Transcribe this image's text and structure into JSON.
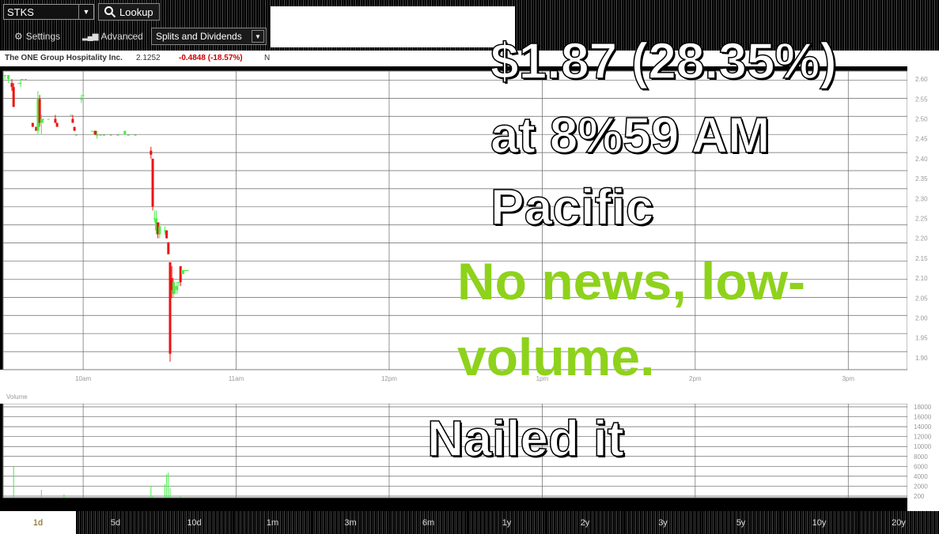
{
  "toolbar": {
    "ticker_value": "STKS",
    "lookup_label": "Lookup",
    "settings_label": "Settings",
    "advanced_label": "Advanced",
    "splits_label": "Splits and Dividends"
  },
  "quote": {
    "company": "The ONE Group Hospitality Inc.",
    "last_price": "2.1252",
    "change": "-0.4848 (-18.57%)",
    "extra": "N"
  },
  "colors": {
    "up": "#44ee44",
    "down": "#ee1111",
    "grid": "#666666",
    "annotation_green": "#8ed21c"
  },
  "chart_data": [
    {
      "type": "candlestick",
      "title": "",
      "x_tick_labels": [
        "10am",
        "11am",
        "12pm",
        "1pm",
        "2pm",
        "3pm"
      ],
      "y_tick_labels": [
        "2.60",
        "2.55",
        "2.50",
        "2.45",
        "2.40",
        "2.35",
        "2.30",
        "2.25",
        "2.20",
        "2.15",
        "2.10",
        "2.05",
        "2.00",
        "1.95",
        "1.90"
      ],
      "ylim": [
        1.87,
        2.62
      ],
      "grid": true,
      "candles": [
        {
          "t": 1,
          "o": 2.61,
          "h": 2.61,
          "l": 2.6,
          "c": 2.61
        },
        {
          "t": 3,
          "o": 2.6,
          "h": 2.61,
          "l": 2.59,
          "c": 2.61
        },
        {
          "t": 5,
          "o": 2.59,
          "h": 2.6,
          "l": 2.57,
          "c": 2.58
        },
        {
          "t": 6,
          "o": 2.58,
          "h": 2.59,
          "l": 2.53,
          "c": 2.53
        },
        {
          "t": 9,
          "o": 2.59,
          "h": 2.59,
          "l": 2.59,
          "c": 2.59
        },
        {
          "t": 10,
          "o": 2.59,
          "h": 2.6,
          "l": 2.58,
          "c": 2.59
        },
        {
          "t": 11,
          "o": 2.6,
          "h": 2.6,
          "l": 2.6,
          "c": 2.6
        },
        {
          "t": 13,
          "o": 2.6,
          "h": 2.6,
          "l": 2.6,
          "c": 2.6
        },
        {
          "t": 17,
          "o": 2.49,
          "h": 2.49,
          "l": 2.48,
          "c": 2.48
        },
        {
          "t": 19,
          "o": 2.48,
          "h": 2.48,
          "l": 2.47,
          "c": 2.47
        },
        {
          "t": 20,
          "o": 2.47,
          "h": 2.57,
          "l": 2.46,
          "c": 2.55
        },
        {
          "t": 21,
          "o": 2.55,
          "h": 2.56,
          "l": 2.48,
          "c": 2.49
        },
        {
          "t": 22,
          "o": 2.49,
          "h": 2.51,
          "l": 2.46,
          "c": 2.5
        },
        {
          "t": 23,
          "o": 2.5,
          "h": 2.5,
          "l": 2.49,
          "c": 2.5
        },
        {
          "t": 26,
          "o": 2.5,
          "h": 2.5,
          "l": 2.5,
          "c": 2.5
        },
        {
          "t": 30,
          "o": 2.5,
          "h": 2.51,
          "l": 2.49,
          "c": 2.49
        },
        {
          "t": 31,
          "o": 2.49,
          "h": 2.49,
          "l": 2.48,
          "c": 2.48
        },
        {
          "t": 39,
          "o": 2.51,
          "h": 2.51,
          "l": 2.51,
          "c": 2.51
        },
        {
          "t": 40,
          "o": 2.5,
          "h": 2.51,
          "l": 2.49,
          "c": 2.49
        },
        {
          "t": 41,
          "o": 2.48,
          "h": 2.48,
          "l": 2.47,
          "c": 2.47
        },
        {
          "t": 42,
          "o": 2.46,
          "h": 2.46,
          "l": 2.46,
          "c": 2.46
        },
        {
          "t": 45,
          "o": 2.55,
          "h": 2.56,
          "l": 2.54,
          "c": 2.55
        },
        {
          "t": 46,
          "o": 2.56,
          "h": 2.57,
          "l": 2.55,
          "c": 2.56
        },
        {
          "t": 51,
          "o": 2.47,
          "h": 2.47,
          "l": 2.47,
          "c": 2.47
        },
        {
          "t": 52,
          "o": 2.47,
          "h": 2.47,
          "l": 2.46,
          "c": 2.47
        },
        {
          "t": 53,
          "o": 2.47,
          "h": 2.47,
          "l": 2.46,
          "c": 2.46
        },
        {
          "t": 54,
          "o": 2.46,
          "h": 2.47,
          "l": 2.45,
          "c": 2.46
        },
        {
          "t": 56,
          "o": 2.46,
          "h": 2.46,
          "l": 2.46,
          "c": 2.46
        },
        {
          "t": 58,
          "o": 2.46,
          "h": 2.46,
          "l": 2.46,
          "c": 2.46
        },
        {
          "t": 62,
          "o": 2.46,
          "h": 2.46,
          "l": 2.46,
          "c": 2.46
        },
        {
          "t": 66,
          "o": 2.46,
          "h": 2.46,
          "l": 2.46,
          "c": 2.46
        },
        {
          "t": 70,
          "o": 2.46,
          "h": 2.47,
          "l": 2.46,
          "c": 2.47
        },
        {
          "t": 72,
          "o": 2.46,
          "h": 2.46,
          "l": 2.46,
          "c": 2.46
        },
        {
          "t": 76,
          "o": 2.46,
          "h": 2.46,
          "l": 2.46,
          "c": 2.46
        },
        {
          "t": 85,
          "o": 2.42,
          "h": 2.43,
          "l": 2.4,
          "c": 2.41
        },
        {
          "t": 86,
          "o": 2.4,
          "h": 2.4,
          "l": 2.27,
          "c": 2.28
        },
        {
          "t": 87,
          "o": 2.25,
          "h": 2.27,
          "l": 2.24,
          "c": 2.25
        },
        {
          "t": 88,
          "o": 2.22,
          "h": 2.27,
          "l": 2.21,
          "c": 2.25
        },
        {
          "t": 89,
          "o": 2.24,
          "h": 2.24,
          "l": 2.2,
          "c": 2.21
        },
        {
          "t": 90,
          "o": 2.21,
          "h": 2.24,
          "l": 2.2,
          "c": 2.23
        },
        {
          "t": 93,
          "o": 2.22,
          "h": 2.23,
          "l": 2.21,
          "c": 2.22
        },
        {
          "t": 94,
          "o": 2.22,
          "h": 2.22,
          "l": 2.2,
          "c": 2.2
        },
        {
          "t": 95,
          "o": 2.19,
          "h": 2.19,
          "l": 2.16,
          "c": 2.16
        },
        {
          "t": 96,
          "o": 2.14,
          "h": 2.14,
          "l": 1.89,
          "c": 1.91
        },
        {
          "t": 97,
          "o": 2.1,
          "h": 2.13,
          "l": 2.05,
          "c": 2.07
        },
        {
          "t": 98,
          "o": 2.06,
          "h": 2.1,
          "l": 2.05,
          "c": 2.09
        },
        {
          "t": 99,
          "o": 2.08,
          "h": 2.08,
          "l": 2.06,
          "c": 2.08
        },
        {
          "t": 100,
          "o": 2.07,
          "h": 2.09,
          "l": 2.06,
          "c": 2.08
        },
        {
          "t": 101,
          "o": 2.09,
          "h": 2.09,
          "l": 2.08,
          "c": 2.09
        },
        {
          "t": 102,
          "o": 2.13,
          "h": 2.13,
          "l": 2.08,
          "c": 2.09
        },
        {
          "t": 103,
          "o": 2.11,
          "h": 2.12,
          "l": 2.11,
          "c": 2.12
        },
        {
          "t": 104,
          "o": 2.12,
          "h": 2.12,
          "l": 2.11,
          "c": 2.12
        },
        {
          "t": 105,
          "o": 2.12,
          "h": 2.12,
          "l": 2.12,
          "c": 2.12
        },
        {
          "t": 106,
          "o": 2.12,
          "h": 2.12,
          "l": 2.12,
          "c": 2.12
        }
      ]
    },
    {
      "type": "bar",
      "title": "Volume",
      "ylim": [
        0,
        18000
      ],
      "y_tick_labels": [
        "18000",
        "16000",
        "14000",
        "12000",
        "10000",
        "8000",
        "6000",
        "4000",
        "2000",
        "200"
      ],
      "bars": [
        {
          "t": 6,
          "v": 6000
        },
        {
          "t": 22,
          "v": 1500
        },
        {
          "t": 35,
          "v": 600
        },
        {
          "t": 85,
          "v": 2300
        },
        {
          "t": 86,
          "v": 300
        },
        {
          "t": 93,
          "v": 2600
        },
        {
          "t": 94,
          "v": 4500
        },
        {
          "t": 95,
          "v": 4800
        },
        {
          "t": 96,
          "v": 1800
        },
        {
          "t": 102,
          "v": 300
        }
      ]
    }
  ],
  "ranges": [
    "1d",
    "5d",
    "10d",
    "1m",
    "3m",
    "6m",
    "1y",
    "2y",
    "3y",
    "5y",
    "10y",
    "20y"
  ],
  "active_range": "1d",
  "annotations": {
    "price": "$1.87 (28.35%)",
    "time": "at 8%59 AM",
    "zone": "Pacific",
    "news_line1": "No news, low-",
    "news_line2": "volume.",
    "verdict": "Nailed it"
  }
}
